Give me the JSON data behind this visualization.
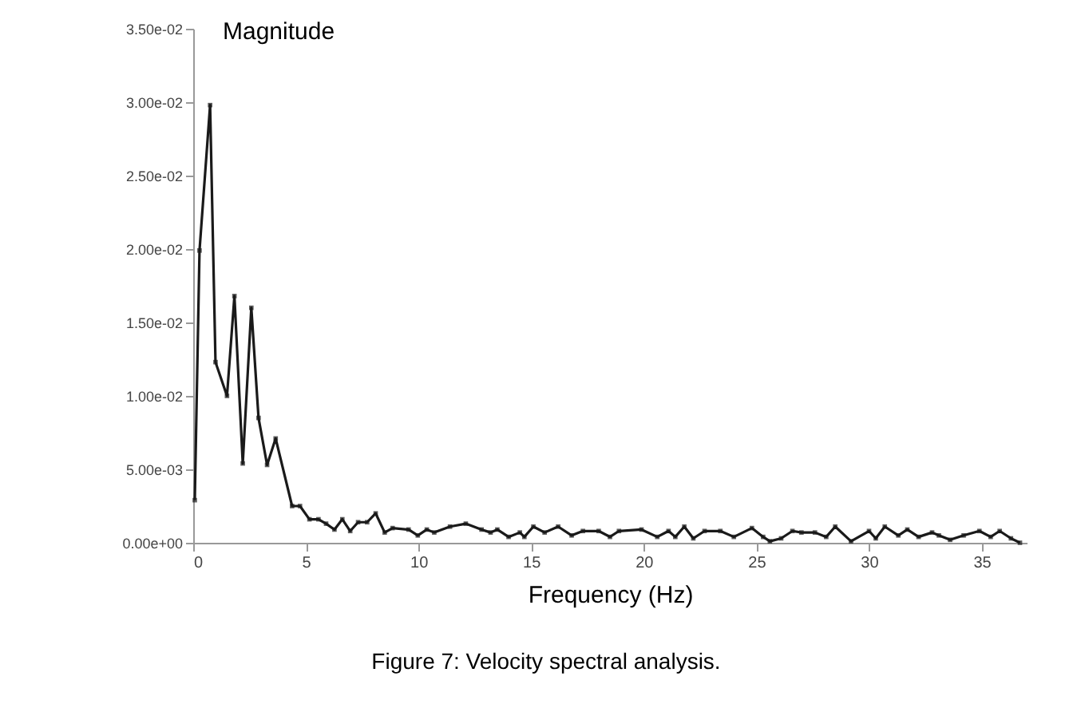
{
  "chart_data": {
    "type": "line",
    "ylabel": "Magnitude",
    "xlabel": "Frequency (Hz)",
    "annotations": [
      "Figure 7: Velocity spectral analysis."
    ],
    "x": [
      0.07,
      0.28,
      0.75,
      0.99,
      1.5,
      1.83,
      2.2,
      2.58,
      2.9,
      3.28,
      3.66,
      4.39,
      4.74,
      5.16,
      5.56,
      5.9,
      6.27,
      6.62,
      6.97,
      7.32,
      7.72,
      8.1,
      8.5,
      8.85,
      9.56,
      9.97,
      10.37,
      10.7,
      11.4,
      12.1,
      12.8,
      13.2,
      13.5,
      14.0,
      14.5,
      14.7,
      15.1,
      15.6,
      16.2,
      16.8,
      17.3,
      18.0,
      18.5,
      18.9,
      19.9,
      20.6,
      21.1,
      21.4,
      21.8,
      22.2,
      22.7,
      23.4,
      24.0,
      24.8,
      25.3,
      25.6,
      26.1,
      26.6,
      27.0,
      27.6,
      28.1,
      28.5,
      29.2,
      30.0,
      30.3,
      30.7,
      31.3,
      31.7,
      32.2,
      32.8,
      33.1,
      33.6,
      34.2,
      34.9,
      35.4,
      35.8,
      36.3,
      36.7
    ],
    "series": [
      {
        "color": "#1a1a1a",
        "values": [
          0.0029,
          0.0199,
          0.0298,
          0.0123,
          0.01,
          0.0168,
          0.0054,
          0.016,
          0.0085,
          0.0053,
          0.0071,
          0.0025,
          0.0025,
          0.0016,
          0.0016,
          0.0013,
          0.0009,
          0.0016,
          0.0008,
          0.0014,
          0.0014,
          0.002,
          0.0007,
          0.001,
          0.0009,
          0.0005,
          0.0009,
          0.0007,
          0.0011,
          0.0013,
          0.0009,
          0.0007,
          0.0009,
          0.0004,
          0.0007,
          0.0004,
          0.0011,
          0.0007,
          0.0011,
          0.0005,
          0.0008,
          0.0008,
          0.0004,
          0.0008,
          0.0009,
          0.0004,
          0.0008,
          0.0004,
          0.0011,
          0.0003,
          0.0008,
          0.0008,
          0.0004,
          0.001,
          0.0004,
          0.0001,
          0.0003,
          0.0008,
          0.0007,
          0.0007,
          0.0004,
          0.0011,
          0.0001,
          0.0008,
          0.0003,
          0.0011,
          0.0005,
          0.0009,
          0.0004,
          0.0007,
          0.0005,
          0.0002,
          0.0005,
          0.0008,
          0.0004,
          0.0008,
          0.0003,
          0.0
        ]
      }
    ],
    "xlim": [
      0,
      37
    ],
    "xticks": [
      0,
      5,
      10,
      15,
      20,
      25,
      30,
      35
    ],
    "ylim": [
      0,
      0.035
    ],
    "yticks": [
      {
        "value": 0,
        "label": "0.00e+00"
      },
      {
        "value": 0.005,
        "label": "5.00e-03"
      },
      {
        "value": 0.01,
        "label": "1.00e-02"
      },
      {
        "value": 0.015,
        "label": "1.50e-02"
      },
      {
        "value": 0.02,
        "label": "2.00e-02"
      },
      {
        "value": 0.025,
        "label": "2.50e-02"
      },
      {
        "value": 0.03,
        "label": "3.00e-02"
      },
      {
        "value": 0.035,
        "label": "3.50e-02"
      }
    ],
    "grid": false,
    "marker": "square",
    "line_style": "solid"
  }
}
